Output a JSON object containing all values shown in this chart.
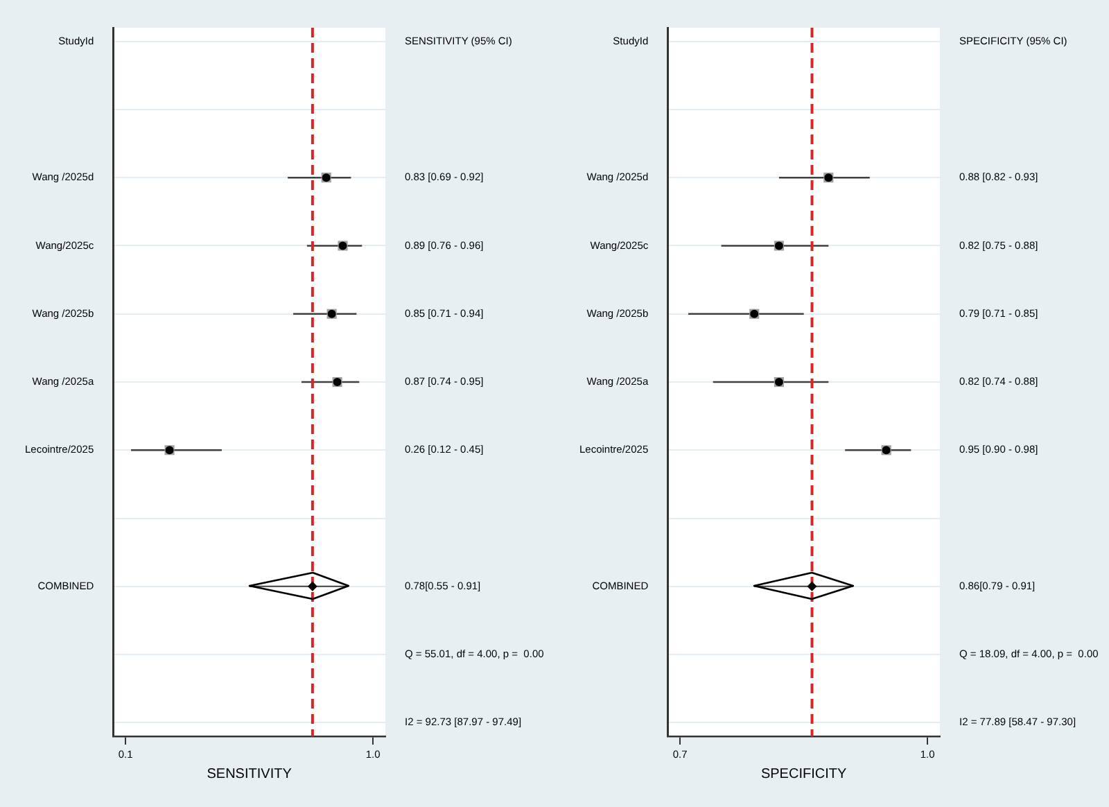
{
  "chart_data": [
    {
      "type": "scatter",
      "orientation": "horizontal",
      "categories": [
        "StudyId",
        null,
        "Wang /2025d",
        "Wang/2025c",
        "Wang /2025b",
        "Wang /2025a",
        "Lecointre/2025",
        null,
        "COMBINED",
        null,
        null
      ],
      "y2_categories": [
        "SENSITIVITY (95% CI)",
        null,
        "0.83 [0.69 - 0.92]",
        "0.89 [0.76 - 0.96]",
        "0.85 [0.71 - 0.94]",
        "0.87 [0.74 - 0.95]",
        "0.26 [0.12 - 0.45]",
        null,
        "0.78[0.55 - 0.91]",
        "Q = 55.01, df = 4.00, p =  0.00",
        "I2 = 92.73 [87.97 - 97.49]"
      ],
      "xlabel": "SENSITIVITY",
      "xlim": [
        0.055,
        1.045
      ],
      "xticks": [
        0.1,
        {
          "value": 1,
          "label": "1.0"
        }
      ],
      "grid": "y",
      "legend": false,
      "ref_lines": [
        {
          "axis": "x",
          "value": 0.78,
          "color": "#d62728",
          "line_style": "dashed"
        }
      ],
      "series": [
        {
          "color": "#a0a0a0",
          "marker": "square",
          "values": [
            null,
            null,
            0.83,
            0.89,
            0.85,
            0.87,
            0.26,
            null,
            null,
            null,
            null
          ],
          "errors": [
            null,
            null,
            [
              0.69,
              0.92
            ],
            [
              0.76,
              0.96
            ],
            [
              0.71,
              0.94
            ],
            [
              0.74,
              0.95
            ],
            [
              0.12,
              0.45
            ],
            null,
            null,
            null,
            null
          ]
        },
        {
          "color": "#000000",
          "marker": "diamond",
          "values": [
            null,
            null,
            null,
            null,
            null,
            null,
            null,
            null,
            0.78,
            null,
            null
          ],
          "errors": [
            null,
            null,
            null,
            null,
            null,
            null,
            null,
            null,
            [
              0.55,
              0.91
            ],
            null,
            null
          ]
        }
      ]
    },
    {
      "type": "scatter",
      "orientation": "horizontal",
      "categories": [
        "StudyId",
        null,
        "Wang /2025d",
        "Wang/2025c",
        "Wang /2025b",
        "Wang /2025a",
        "Lecointre/2025",
        null,
        "COMBINED",
        null,
        null
      ],
      "y2_categories": [
        "SPECIFICITY (95% CI)",
        null,
        "0.88 [0.82 - 0.93]",
        "0.82 [0.75 - 0.88]",
        "0.79 [0.71 - 0.85]",
        "0.82 [0.74 - 0.88]",
        "0.95 [0.90 - 0.98]",
        null,
        "0.86[0.79 - 0.91]",
        "Q = 18.09, df = 4.00, p =  0.00",
        "I2 = 77.89 [58.47 - 97.30]"
      ],
      "xlabel": "SPECIFICITY",
      "xlim": [
        0.685,
        1.015
      ],
      "xticks": [
        0.7,
        {
          "value": 1,
          "label": "1.0"
        }
      ],
      "grid": "y",
      "legend": false,
      "ref_lines": [
        {
          "axis": "x",
          "value": 0.86,
          "color": "#d62728",
          "line_style": "dashed"
        }
      ],
      "series": [
        {
          "color": "#a0a0a0",
          "marker": "square",
          "values": [
            null,
            null,
            0.88,
            0.82,
            0.79,
            0.82,
            0.95,
            null,
            null,
            null,
            null
          ],
          "errors": [
            null,
            null,
            [
              0.82,
              0.93
            ],
            [
              0.75,
              0.88
            ],
            [
              0.71,
              0.85
            ],
            [
              0.74,
              0.88
            ],
            [
              0.9,
              0.98
            ],
            null,
            null,
            null,
            null
          ]
        },
        {
          "color": "#000000",
          "marker": "diamond",
          "values": [
            null,
            null,
            null,
            null,
            null,
            null,
            null,
            null,
            0.86,
            null,
            null
          ],
          "errors": [
            null,
            null,
            null,
            null,
            null,
            null,
            null,
            null,
            [
              0.79,
              0.91
            ],
            null,
            null
          ]
        }
      ]
    }
  ]
}
